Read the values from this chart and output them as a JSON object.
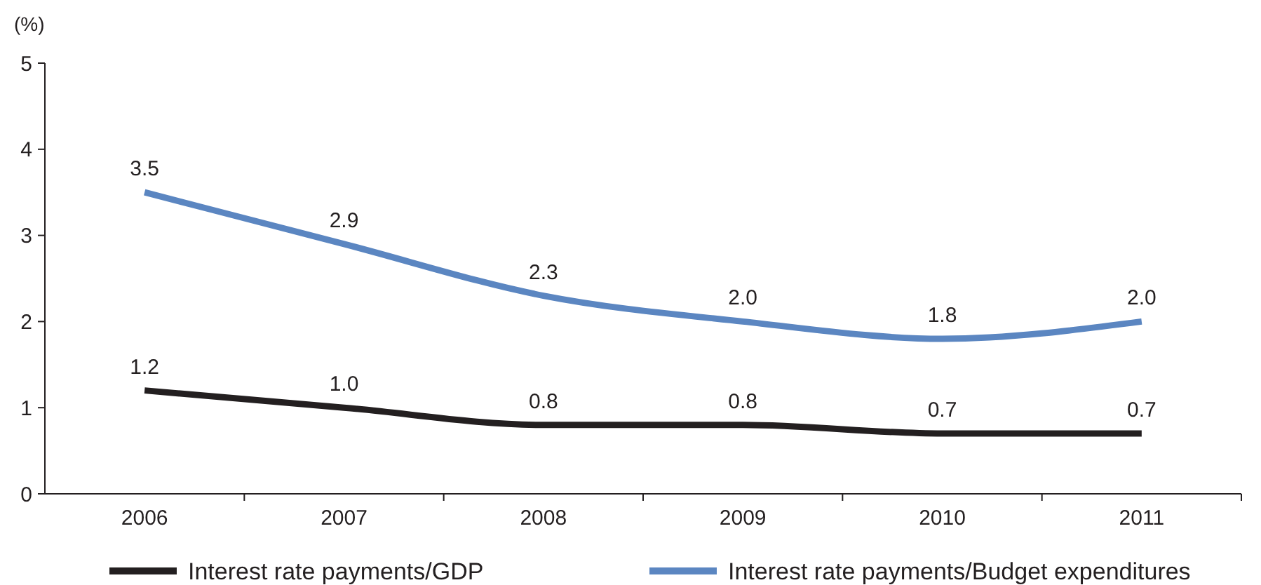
{
  "chart_data": {
    "type": "line",
    "ylabel": "(%)",
    "categories": [
      "2006",
      "2007",
      "2008",
      "2009",
      "2010",
      "2011"
    ],
    "series": [
      {
        "name": "Interest rate payments/GDP",
        "color": "#231f20",
        "values": [
          1.2,
          1.0,
          0.8,
          0.8,
          0.7,
          0.7
        ],
        "value_labels": [
          "1.2",
          "1.0",
          "0.8",
          "0.8",
          "0.7",
          "0.7"
        ]
      },
      {
        "name": "Interest rate payments/Budget expenditures",
        "color": "#5b86c1",
        "values": [
          3.5,
          2.9,
          2.3,
          2.0,
          1.8,
          2.0
        ],
        "value_labels": [
          "3.5",
          "2.9",
          "2.3",
          "2.0",
          "1.8",
          "2.0"
        ]
      }
    ],
    "ylim": [
      0,
      5
    ],
    "yticks": [
      0,
      1,
      2,
      3,
      4,
      5
    ],
    "grid": false,
    "legend": "bottom",
    "marker": "none",
    "line_style": "solid"
  }
}
